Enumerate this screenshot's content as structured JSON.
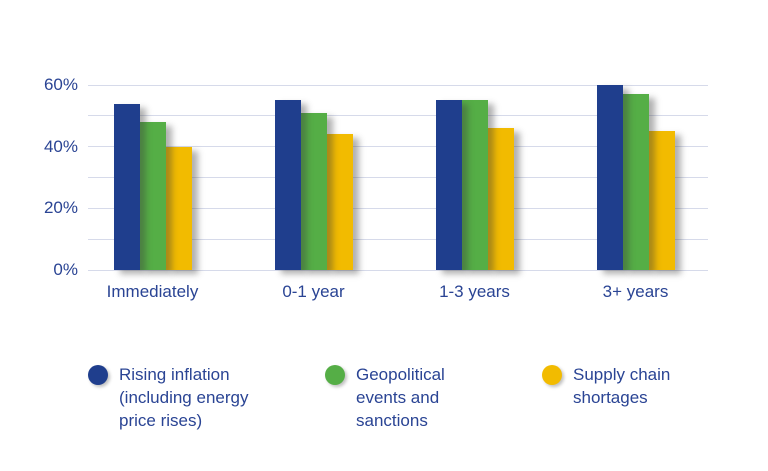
{
  "chart_data": {
    "type": "bar",
    "title": "",
    "xlabel": "",
    "ylabel": "",
    "categories": [
      "Immediately",
      "0-1 year",
      "1-3 years",
      "3+ years"
    ],
    "series": [
      {
        "name": "Rising inflation (including energy price rises)",
        "color": "#1F3E8D",
        "values": [
          54,
          55,
          55,
          60
        ]
      },
      {
        "name": "Geopolitical events and sanctions",
        "color": "#55AE46",
        "values": [
          48,
          51,
          55,
          57
        ]
      },
      {
        "name": "Supply chain shortages",
        "color": "#F2BB00",
        "values": [
          40,
          44,
          46,
          45
        ]
      }
    ],
    "ylim": [
      0,
      60
    ],
    "yticks": [
      0,
      20,
      40,
      60
    ],
    "ytick_labels": [
      "0%",
      "20%",
      "40%",
      "60%"
    ],
    "gridline_step": 10,
    "grid": true,
    "legend_position": "bottom",
    "colors": {
      "text": "#2A4494",
      "gridline": "#D6DAEA",
      "background": "#FFFFFF"
    }
  }
}
